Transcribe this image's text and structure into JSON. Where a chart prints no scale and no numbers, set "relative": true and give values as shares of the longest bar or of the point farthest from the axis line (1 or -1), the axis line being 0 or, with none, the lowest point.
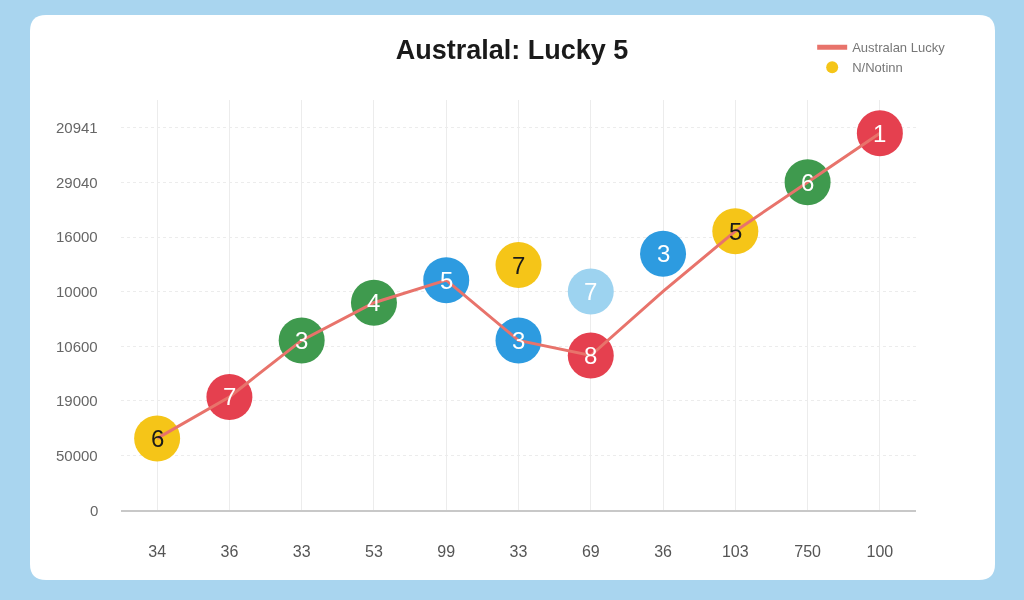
{
  "chart_data": {
    "type": "line",
    "title": "Australal: Lucky 5",
    "relative": true,
    "categories": [
      "34",
      "36",
      "33",
      "53",
      "99",
      "33",
      "69",
      "36",
      "103",
      "750",
      "100"
    ],
    "grid": true,
    "legend": "top right",
    "series": [
      {
        "name": "Australan Lucky",
        "color": "#e8736b",
        "marker": "none",
        "line_style": "solid",
        "values": [
          0.19,
          0.3,
          0.45,
          0.55,
          0.61,
          0.45,
          0.41,
          0.58,
          0.74,
          0.87,
          1
        ]
      },
      {
        "name": "N/Notinn",
        "type": "scatter",
        "marker": "circle",
        "colors": [
          "#f5c518",
          "#e5404f",
          "#3f9a4e",
          "#3f9a4e",
          "#2d9be0",
          "#2d9be0",
          "#e5404f",
          null,
          "#f5c518",
          "#3f9a4e",
          "#e5404f"
        ],
        "values": [
          0.19,
          0.3,
          0.45,
          0.55,
          0.61,
          0.45,
          0.41,
          null,
          0.74,
          0.87,
          1
        ]
      },
      {
        "type": "scatter",
        "marker": "circle",
        "colors": [
          null,
          null,
          null,
          null,
          null,
          "#f5c518",
          "#9dd3f0",
          "#2d9be0",
          null,
          null,
          null
        ],
        "values": [
          null,
          null,
          null,
          null,
          null,
          0.65,
          0.58,
          0.68,
          null,
          null,
          null
        ]
      }
    ],
    "annotations": [
      "20941",
      "29040",
      "16000",
      "10000",
      "10600",
      "19000",
      "50000",
      "0",
      {
        "text": "6",
        "x": "34",
        "y": 0.19
      },
      {
        "text": "7",
        "x": "36",
        "y": 0.3
      },
      {
        "text": "3",
        "x": "33",
        "y": 0.45
      },
      {
        "text": "4",
        "x": "53",
        "y": 0.55
      },
      {
        "text": "5",
        "x": "99",
        "y": 0.61
      },
      {
        "text": "8",
        "x": "69",
        "y": 0.41
      },
      {
        "text": "7",
        "x": "69",
        "y": 0.58
      },
      {
        "text": "5",
        "x": "103",
        "y": 0.74
      },
      {
        "text": "6",
        "x": "750",
        "y": 0.87
      },
      {
        "text": "1",
        "x": "100",
        "y": 1
      },
      "3",
      "7",
      "3"
    ]
  }
}
